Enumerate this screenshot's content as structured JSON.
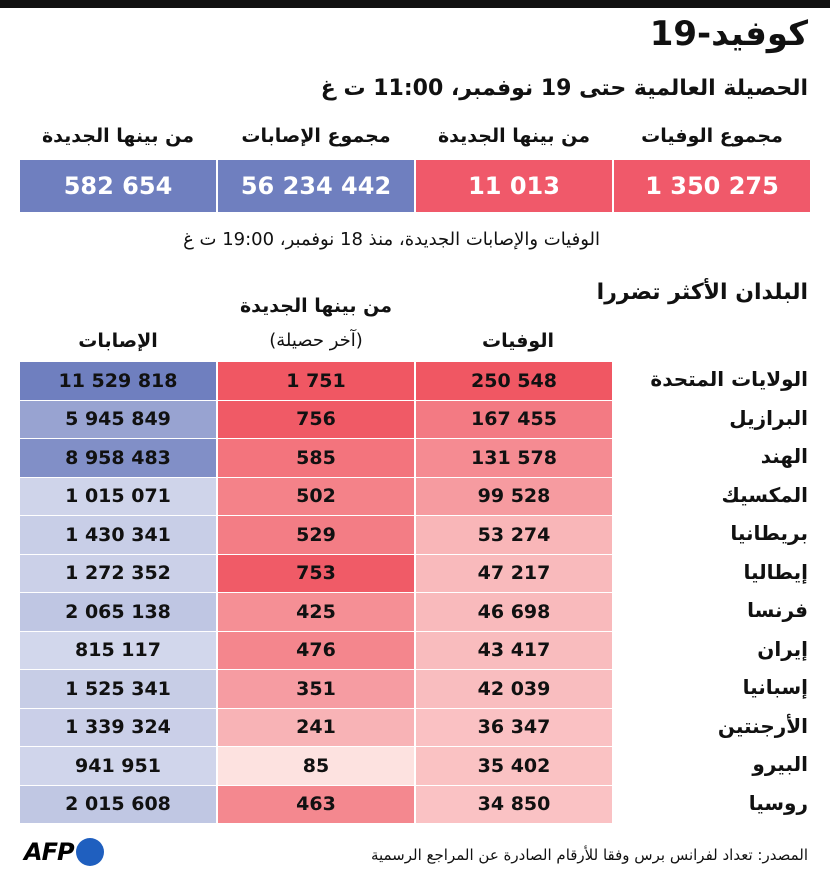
{
  "title": "كوفيد-19",
  "subtitle": "الحصيلة العالمية حتى 19 نوفمبر، 11:00 ت غ",
  "summary": {
    "headers": [
      "مجموع الوفيات",
      "من بينها الجديدة",
      "مجموع الإصابات",
      "من بينها الجديدة"
    ],
    "values": [
      "1 350 275",
      "11 013",
      "56 234 442",
      "582 654"
    ],
    "colors": [
      "#f0596a",
      "#f0596a",
      "#6f7fbf",
      "#6f7fbf"
    ]
  },
  "note": "الوفيات والإصابات الجديدة، منذ 18 نوفمبر، 19:00 ت غ",
  "section_title": "البلدان الأكثر تضررا",
  "columns": {
    "deaths": "الوفيات",
    "new_line1": "من بينها الجديدة",
    "new_line2": "(آخر حصيلة)",
    "cases": "الإصابات"
  },
  "source": "المصدر: تعداد لفرانس برس وفقا للأرقام الصادرة عن المراجع الرسمية",
  "logo": "AFP",
  "chart_data": {
    "type": "table",
    "title": "كوفيد-19",
    "columns": [
      "الوفيات",
      "من بينها الجديدة (آخر حصيلة)",
      "الإصابات"
    ],
    "rows": [
      {
        "country": "الولايات المتحدة",
        "deaths": 250548,
        "deaths_label": "250 548",
        "new": 1751,
        "new_label": "1 751",
        "cases": 11529818,
        "cases_label": "11 529 818"
      },
      {
        "country": "البرازيل",
        "deaths": 167455,
        "deaths_label": "167 455",
        "new": 756,
        "new_label": "756",
        "cases": 5945849,
        "cases_label": "5 945 849"
      },
      {
        "country": "الهند",
        "deaths": 131578,
        "deaths_label": "131 578",
        "new": 585,
        "new_label": "585",
        "cases": 8958483,
        "cases_label": "8 958 483"
      },
      {
        "country": "المكسيك",
        "deaths": 99528,
        "deaths_label": "99 528",
        "new": 502,
        "new_label": "502",
        "cases": 1015071,
        "cases_label": "1 015 071"
      },
      {
        "country": "بريطانيا",
        "deaths": 53274,
        "deaths_label": "53 274",
        "new": 529,
        "new_label": "529",
        "cases": 1430341,
        "cases_label": "1 430 341"
      },
      {
        "country": "إيطاليا",
        "deaths": 47217,
        "deaths_label": "47 217",
        "new": 753,
        "new_label": "753",
        "cases": 1272352,
        "cases_label": "1 272 352"
      },
      {
        "country": "فرنسا",
        "deaths": 46698,
        "deaths_label": "46 698",
        "new": 425,
        "new_label": "425",
        "cases": 2065138,
        "cases_label": "2 065 138"
      },
      {
        "country": "إيران",
        "deaths": 43417,
        "deaths_label": "43 417",
        "new": 476,
        "new_label": "476",
        "cases": 815117,
        "cases_label": "815 117"
      },
      {
        "country": "إسبانيا",
        "deaths": 42039,
        "deaths_label": "42 039",
        "new": 351,
        "new_label": "351",
        "cases": 1525341,
        "cases_label": "1 525 341"
      },
      {
        "country": "الأرجنتين",
        "deaths": 36347,
        "deaths_label": "36 347",
        "new": 241,
        "new_label": "241",
        "cases": 1339324,
        "cases_label": "1 339 324"
      },
      {
        "country": "البيرو",
        "deaths": 35402,
        "deaths_label": "35 402",
        "new": 85,
        "new_label": "85",
        "cases": 941951,
        "cases_label": "941 951"
      },
      {
        "country": "روسيا",
        "deaths": 34850,
        "deaths_label": "34 850",
        "new": 463,
        "new_label": "463",
        "cases": 2015608,
        "cases_label": "2 015 608"
      }
    ]
  }
}
